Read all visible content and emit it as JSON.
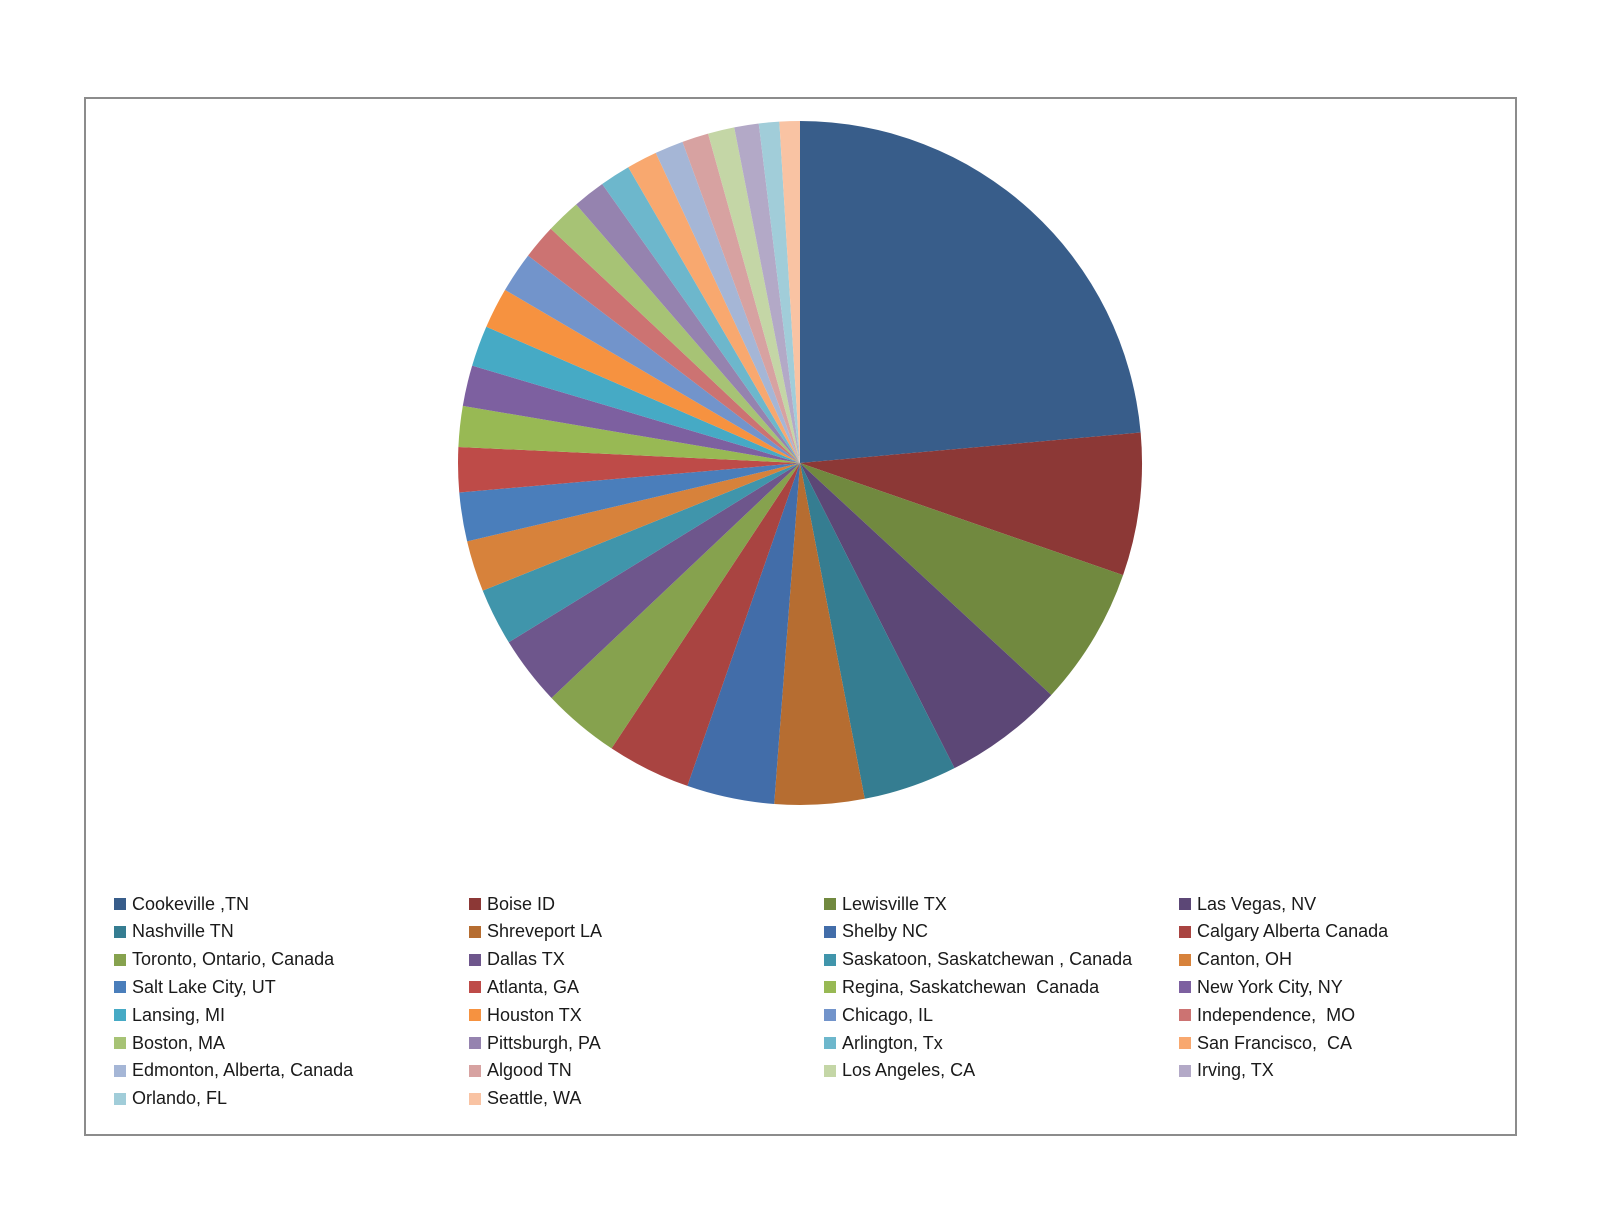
{
  "chart_data": {
    "type": "pie",
    "title": "",
    "legend_position": "bottom",
    "start_angle_deg": 0,
    "direction": "clockwise",
    "slices": [
      {
        "label": "Cookeville ,TN",
        "value": 24.5,
        "color": "#385D8A"
      },
      {
        "label": "Boise ID",
        "value": 7.0,
        "color": "#8C3836"
      },
      {
        "label": "Lewisville TX",
        "value": 6.8,
        "color": "#71893F"
      },
      {
        "label": "Las Vegas, NV",
        "value": 5.9,
        "color": "#5C4776"
      },
      {
        "label": "Nashville TN",
        "value": 4.6,
        "color": "#357D91"
      },
      {
        "label": "Shreveport LA",
        "value": 4.4,
        "color": "#B66D31"
      },
      {
        "label": "Shelby NC",
        "value": 4.3,
        "color": "#426DA9"
      },
      {
        "label": "Calgary Alberta Canada",
        "value": 4.1,
        "color": "#A94441"
      },
      {
        "label": "Toronto, Ontario, Canada",
        "value": 3.8,
        "color": "#86A24E"
      },
      {
        "label": "Dallas TX",
        "value": 3.4,
        "color": "#6E568C"
      },
      {
        "label": "Saskatoon, Saskatchewan , Canada",
        "value": 2.8,
        "color": "#4095AB"
      },
      {
        "label": "Canton, OH",
        "value": 2.5,
        "color": "#D7823B"
      },
      {
        "label": "Salt Lake City, UT",
        "value": 2.4,
        "color": "#4A7EBB"
      },
      {
        "label": "Atlanta, GA",
        "value": 2.2,
        "color": "#BE4B48"
      },
      {
        "label": "Regina, Saskatchewan  Canada",
        "value": 2.0,
        "color": "#98B954"
      },
      {
        "label": "New York City, NY",
        "value": 2.0,
        "color": "#7D60A0"
      },
      {
        "label": "Lansing, MI",
        "value": 2.0,
        "color": "#46AAC5"
      },
      {
        "label": "Houston TX",
        "value": 2.0,
        "color": "#F69240"
      },
      {
        "label": "Chicago, IL",
        "value": 2.0,
        "color": "#7294CB"
      },
      {
        "label": "Independence,  MO",
        "value": 1.7,
        "color": "#CC7372"
      },
      {
        "label": "Boston, MA",
        "value": 1.7,
        "color": "#A7C375"
      },
      {
        "label": "Pittsburgh, PA",
        "value": 1.6,
        "color": "#9583AF"
      },
      {
        "label": "Arlington, Tx",
        "value": 1.5,
        "color": "#6DB7CC"
      },
      {
        "label": "San Francisco,  CA",
        "value": 1.5,
        "color": "#F8A86F"
      },
      {
        "label": "Edmonton, Alberta, Canada",
        "value": 1.4,
        "color": "#A5B6D6"
      },
      {
        "label": "Algood TN",
        "value": 1.3,
        "color": "#D7A2A1"
      },
      {
        "label": "Los Angeles, CA",
        "value": 1.3,
        "color": "#C4D6A6"
      },
      {
        "label": "Irving, TX",
        "value": 1.2,
        "color": "#B3A9C7"
      },
      {
        "label": "Orlando, FL",
        "value": 1.0,
        "color": "#A1CDD9"
      },
      {
        "label": "Seattle, WA",
        "value": 1.0,
        "color": "#F9C3A3"
      }
    ]
  }
}
